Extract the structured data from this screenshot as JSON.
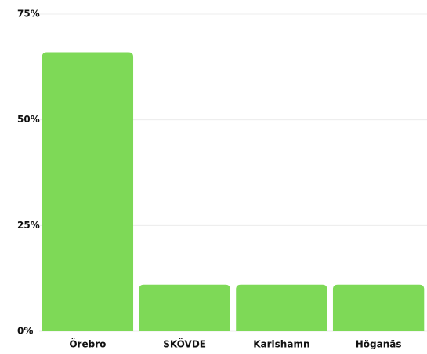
{
  "chart_data": {
    "type": "bar",
    "categories": [
      "Örebro",
      "SKÖVDE",
      "Karlshamn",
      "Höganäs"
    ],
    "values": [
      66,
      11,
      11,
      11
    ],
    "color": "#7ed957",
    "ylim": [
      0,
      75
    ],
    "yticks": [
      {
        "value": 0,
        "label": "0%"
      },
      {
        "value": 25,
        "label": "25%"
      },
      {
        "value": 50,
        "label": "50%"
      },
      {
        "value": 75,
        "label": "75%"
      }
    ],
    "grid": true
  }
}
